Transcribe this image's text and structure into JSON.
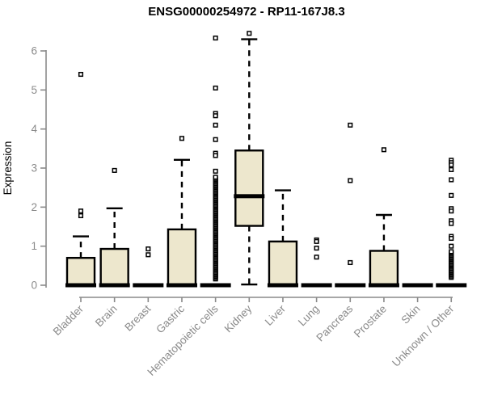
{
  "title": "ENSG00000254972 - RP11-167J8.3",
  "chart_data": {
    "type": "boxplot",
    "title": "ENSG00000254972 - RP11-167J8.3",
    "xlabel": "",
    "ylabel": "Expression",
    "ylim": [
      0,
      6.5
    ],
    "yticks": [
      0,
      1,
      2,
      3,
      4,
      5,
      6
    ],
    "grid": "off",
    "categories": [
      "Bladder",
      "Brain",
      "Breast",
      "Gastric",
      "Hematopoietic cells",
      "Kidney",
      "Liver",
      "Lung",
      "Pancreas",
      "Prostate",
      "Skin",
      "Unknown / Other"
    ],
    "groups": [
      {
        "label": "Bladder",
        "q1": 0,
        "median": 0,
        "q3": 0.7,
        "whisker_low": 0,
        "whisker_high": 1.25,
        "outliers": [
          1.78,
          1.9,
          5.4
        ],
        "outlier_bands": []
      },
      {
        "label": "Brain",
        "q1": 0,
        "median": 0,
        "q3": 0.93,
        "whisker_low": 0,
        "whisker_high": 1.97,
        "outliers": [
          2.94
        ],
        "outlier_bands": []
      },
      {
        "label": "Breast",
        "q1": 0,
        "median": 0,
        "q3": 0,
        "whisker_low": 0,
        "whisker_high": 0,
        "outliers": [
          0.78,
          0.93
        ],
        "outlier_bands": []
      },
      {
        "label": "Gastric",
        "q1": 0,
        "median": 0,
        "q3": 1.43,
        "whisker_low": 0,
        "whisker_high": 3.21,
        "outliers": [
          3.76
        ],
        "outlier_bands": []
      },
      {
        "label": "Hematopoietic cells",
        "q1": 0,
        "median": 0,
        "q3": 0,
        "whisker_low": 0,
        "whisker_high": 0,
        "outliers": [
          6.33,
          5.05,
          4.4,
          4.34,
          4.1,
          3.73,
          3.38,
          3.32,
          2.92
        ],
        "outlier_bands": [
          {
            "from": 0.16,
            "to": 2.78,
            "step": 0.033
          }
        ]
      },
      {
        "label": "Kidney",
        "q1": 1.52,
        "median": 2.28,
        "q3": 3.45,
        "whisker_low": 0.02,
        "whisker_high": 6.3,
        "outliers": [
          6.45
        ],
        "outlier_bands": []
      },
      {
        "label": "Liver",
        "q1": 0,
        "median": 0,
        "q3": 1.12,
        "whisker_low": 0,
        "whisker_high": 2.43,
        "outliers": [],
        "outlier_bands": []
      },
      {
        "label": "Lung",
        "q1": 0,
        "median": 0,
        "q3": 0,
        "whisker_low": 0,
        "whisker_high": 0,
        "outliers": [
          1.16,
          1.12,
          0.95,
          0.72
        ],
        "outlier_bands": []
      },
      {
        "label": "Pancreas",
        "q1": 0,
        "median": 0,
        "q3": 0,
        "whisker_low": 0,
        "whisker_high": 0,
        "outliers": [
          4.1,
          2.68,
          0.58
        ],
        "outlier_bands": []
      },
      {
        "label": "Prostate",
        "q1": 0,
        "median": 0,
        "q3": 0.88,
        "whisker_low": 0,
        "whisker_high": 1.8,
        "outliers": [
          3.47
        ],
        "outlier_bands": []
      },
      {
        "label": "Skin",
        "q1": 0,
        "median": 0,
        "q3": 0,
        "whisker_low": 0,
        "whisker_high": 0,
        "outliers": [],
        "outlier_bands": []
      },
      {
        "label": "Unknown / Other",
        "q1": 0,
        "median": 0,
        "q3": 0,
        "whisker_low": 0,
        "whisker_high": 0,
        "outliers": [
          3.2,
          3.14,
          3.08,
          2.96,
          2.7,
          2.3,
          1.96,
          1.9,
          1.65,
          1.58,
          1.25,
          1.2,
          1.0
        ],
        "outlier_bands": [
          {
            "from": 0.2,
            "to": 0.86,
            "step": 0.033
          }
        ]
      }
    ],
    "colors": {
      "box_fill": "#EDE7CD",
      "box_border": "#000000",
      "median": "#000000",
      "whisker": "#000000",
      "outlier_stroke": "#000000",
      "outlier_fill": "#ffffff",
      "axis": "#8A8A8A",
      "tick_label": "#8A8A8A",
      "axis_label": "#8A8A8A",
      "title": "#000000",
      "background": "#ffffff"
    }
  }
}
